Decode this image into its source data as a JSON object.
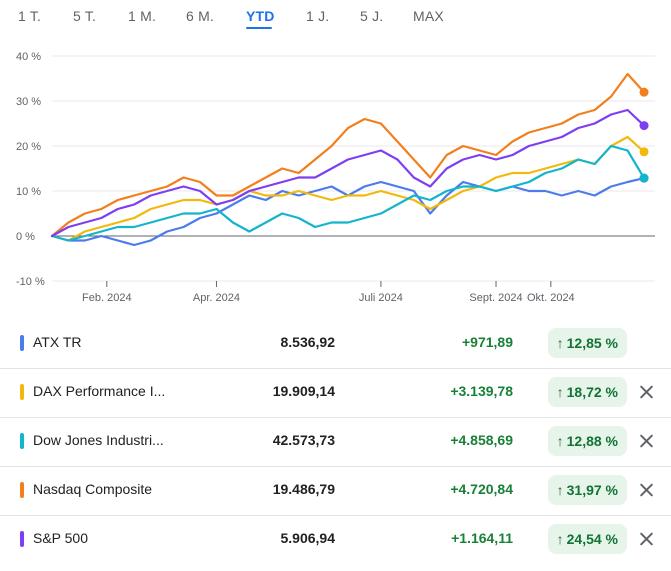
{
  "tabs": [
    {
      "label": "1 T.",
      "active": false
    },
    {
      "label": "5 T.",
      "active": false
    },
    {
      "label": "1 M.",
      "active": false
    },
    {
      "label": "6 M.",
      "active": false
    },
    {
      "label": "YTD",
      "active": true
    },
    {
      "label": "1 J.",
      "active": false
    },
    {
      "label": "5 J.",
      "active": false
    },
    {
      "label": "MAX",
      "active": false
    }
  ],
  "chart_data": {
    "type": "line",
    "y_tick_labels": [
      "40 %",
      "30 %",
      "20 %",
      "10 %",
      "0 %",
      "-10 %"
    ],
    "y_ticks": [
      40,
      30,
      20,
      10,
      0,
      -10
    ],
    "ylim": [
      -10,
      40
    ],
    "x_tick_labels": [
      "Feb. 2024",
      "Apr. 2024",
      "Juli 2024",
      "Sept. 2024",
      "Okt. 2024"
    ],
    "x_ticks": [
      1.0,
      3.0,
      6.0,
      8.1,
      9.1
    ],
    "xlim": [
      0,
      11.0
    ],
    "x_unit": "months since 1 Jan 2024",
    "grid": true,
    "series": [
      {
        "name": "ATX TR",
        "color": "#4b7bec",
        "x": [
          0,
          0.3,
          0.6,
          0.9,
          1.2,
          1.5,
          1.8,
          2.1,
          2.4,
          2.7,
          3.0,
          3.3,
          3.6,
          3.9,
          4.2,
          4.5,
          4.8,
          5.1,
          5.4,
          5.7,
          6.0,
          6.3,
          6.6,
          6.9,
          7.2,
          7.5,
          7.8,
          8.1,
          8.4,
          8.7,
          9.0,
          9.3,
          9.6,
          9.9,
          10.2,
          10.5,
          10.8
        ],
        "values": [
          0,
          -1,
          -1,
          0,
          -1,
          -2,
          -1,
          1,
          2,
          4,
          5,
          7,
          9,
          8,
          10,
          9,
          10,
          11,
          9,
          11,
          12,
          11,
          10,
          5,
          9,
          12,
          11,
          10,
          11,
          10,
          10,
          9,
          10,
          9,
          11,
          12,
          12.85
        ]
      },
      {
        "name": "DAX Performance I...",
        "color": "#f2b90c",
        "x": [
          0,
          0.3,
          0.6,
          0.9,
          1.2,
          1.5,
          1.8,
          2.1,
          2.4,
          2.7,
          3.0,
          3.3,
          3.6,
          3.9,
          4.2,
          4.5,
          4.8,
          5.1,
          5.4,
          5.7,
          6.0,
          6.3,
          6.6,
          6.9,
          7.2,
          7.5,
          7.8,
          8.1,
          8.4,
          8.7,
          9.0,
          9.3,
          9.6,
          9.9,
          10.2,
          10.5,
          10.8
        ],
        "values": [
          0,
          -1,
          1,
          2,
          3,
          4,
          6,
          7,
          8,
          8,
          7,
          8,
          10,
          9,
          9,
          10,
          9,
          8,
          9,
          9,
          10,
          9,
          8,
          6,
          8,
          10,
          11,
          13,
          14,
          14,
          15,
          16,
          17,
          16,
          20,
          22,
          18.72
        ]
      },
      {
        "name": "Dow Jones Industri...",
        "color": "#12b5cb",
        "x": [
          0,
          0.3,
          0.6,
          0.9,
          1.2,
          1.5,
          1.8,
          2.1,
          2.4,
          2.7,
          3.0,
          3.3,
          3.6,
          3.9,
          4.2,
          4.5,
          4.8,
          5.1,
          5.4,
          5.7,
          6.0,
          6.3,
          6.6,
          6.9,
          7.2,
          7.5,
          7.8,
          8.1,
          8.4,
          8.7,
          9.0,
          9.3,
          9.6,
          9.9,
          10.2,
          10.5,
          10.8
        ],
        "values": [
          0,
          -1,
          0,
          1,
          2,
          2,
          3,
          4,
          5,
          5,
          6,
          3,
          1,
          3,
          5,
          4,
          2,
          3,
          3,
          4,
          5,
          7,
          9,
          8,
          10,
          11,
          11,
          10,
          11,
          12,
          14,
          15,
          17,
          16,
          20,
          19,
          12.88
        ]
      },
      {
        "name": "Nasdaq Composite",
        "color": "#f37f1c",
        "x": [
          0,
          0.3,
          0.6,
          0.9,
          1.2,
          1.5,
          1.8,
          2.1,
          2.4,
          2.7,
          3.0,
          3.3,
          3.6,
          3.9,
          4.2,
          4.5,
          4.8,
          5.1,
          5.4,
          5.7,
          6.0,
          6.3,
          6.6,
          6.9,
          7.2,
          7.5,
          7.8,
          8.1,
          8.4,
          8.7,
          9.0,
          9.3,
          9.6,
          9.9,
          10.2,
          10.5,
          10.8
        ],
        "values": [
          0,
          3,
          5,
          6,
          8,
          9,
          10,
          11,
          13,
          12,
          9,
          9,
          11,
          13,
          15,
          14,
          17,
          20,
          24,
          26,
          25,
          21,
          17,
          13,
          18,
          20,
          19,
          18,
          21,
          23,
          24,
          25,
          27,
          28,
          31,
          36,
          31.97
        ]
      },
      {
        "name": "S&P 500",
        "color": "#7e3ff2",
        "x": [
          0,
          0.3,
          0.6,
          0.9,
          1.2,
          1.5,
          1.8,
          2.1,
          2.4,
          2.7,
          3.0,
          3.3,
          3.6,
          3.9,
          4.2,
          4.5,
          4.8,
          5.1,
          5.4,
          5.7,
          6.0,
          6.3,
          6.6,
          6.9,
          7.2,
          7.5,
          7.8,
          8.1,
          8.4,
          8.7,
          9.0,
          9.3,
          9.6,
          9.9,
          10.2,
          10.5,
          10.8
        ],
        "values": [
          0,
          2,
          3,
          4,
          6,
          7,
          9,
          10,
          11,
          10,
          7,
          8,
          10,
          11,
          12,
          13,
          13,
          15,
          17,
          18,
          19,
          17,
          13,
          11,
          15,
          17,
          18,
          17,
          18,
          20,
          21,
          22,
          24,
          25,
          27,
          28,
          24.54
        ]
      }
    ]
  },
  "rows": [
    {
      "name": "ATX TR",
      "color": "#4b7bec",
      "price": "8.536,92",
      "change": "+971,89",
      "pct": "12,85 %",
      "removable": false
    },
    {
      "name": "DAX Performance I...",
      "color": "#f2b90c",
      "price": "19.909,14",
      "change": "+3.139,78",
      "pct": "18,72 %",
      "removable": true
    },
    {
      "name": "Dow Jones Industri...",
      "color": "#12b5cb",
      "price": "42.573,73",
      "change": "+4.858,69",
      "pct": "12,88 %",
      "removable": true
    },
    {
      "name": "Nasdaq Composite",
      "color": "#f37f1c",
      "price": "19.486,79",
      "change": "+4.720,84",
      "pct": "31,97 %",
      "removable": true
    },
    {
      "name": "S&P 500",
      "color": "#7e3ff2",
      "price": "5.906,94",
      "change": "+1.164,11",
      "pct": "24,54 %",
      "removable": true
    }
  ],
  "icons": {
    "up_arrow": "↑",
    "close": "close-icon"
  }
}
